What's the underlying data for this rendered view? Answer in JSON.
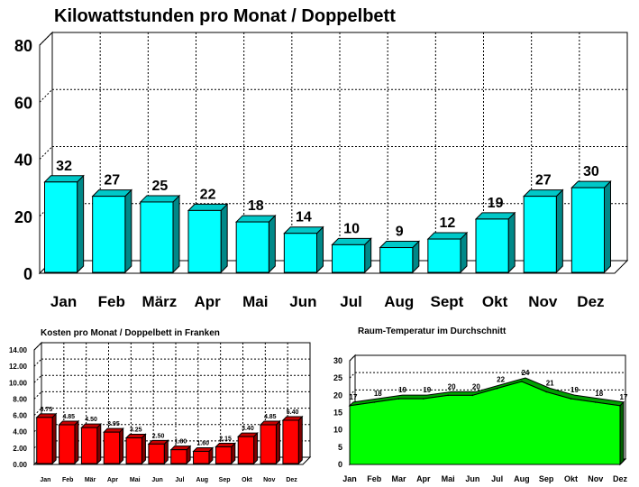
{
  "chart_data": [
    {
      "type": "bar",
      "title": "Kilowattstunden pro Monat / Doppelbett",
      "categories": [
        "Jan",
        "Feb",
        "März",
        "Apr",
        "Mai",
        "Jun",
        "Jul",
        "Aug",
        "Sept",
        "Okt",
        "Nov",
        "Dez"
      ],
      "values": [
        32,
        27,
        25,
        22,
        18,
        14,
        10,
        9,
        12,
        19,
        27,
        30
      ],
      "value_labels": [
        "32",
        "27",
        "25",
        "22",
        "18",
        "14",
        "10",
        "9",
        "12",
        "19",
        "27",
        "30"
      ],
      "yticks": [
        "0",
        "20",
        "40",
        "60",
        "80"
      ],
      "ylim": [
        0,
        80
      ],
      "grid": true,
      "colors": {
        "front": "#00ffff",
        "top": "#00c8c8",
        "side": "#008888"
      }
    },
    {
      "type": "bar",
      "title": "Kosten pro Monat / Doppelbett in Franken",
      "categories": [
        "Jan",
        "Feb",
        "Mär",
        "Apr",
        "Mai",
        "Jun",
        "Jul",
        "Aug",
        "Sep",
        "Okt",
        "Nov",
        "Dez"
      ],
      "values": [
        5.75,
        4.85,
        4.5,
        3.95,
        3.25,
        2.5,
        1.8,
        1.6,
        2.15,
        3.4,
        4.85,
        5.4
      ],
      "value_labels": [
        "5.75",
        "4.85",
        "4.50",
        "3.95",
        "3.25",
        "2.50",
        "1.80",
        "1.60",
        "2.15",
        "3.40",
        "4.85",
        "5.40"
      ],
      "yticks": [
        "0.00",
        "2.00",
        "4.00",
        "6.00",
        "8.00",
        "10.00",
        "12.00",
        "14.00"
      ],
      "ylim": [
        0,
        14
      ],
      "grid": true,
      "colors": {
        "front": "#ff0000",
        "top": "#c80000",
        "side": "#800000"
      }
    },
    {
      "type": "area",
      "title": "Raum-Temperatur im Durchschnitt",
      "categories": [
        "Jan",
        "Feb",
        "Mar",
        "Apr",
        "Mai",
        "Jun",
        "Jul",
        "Aug",
        "Sep",
        "Okt",
        "Nov",
        "Dez"
      ],
      "values": [
        17,
        18,
        19,
        19,
        20,
        20,
        22,
        24,
        21,
        19,
        18,
        17
      ],
      "value_labels": [
        "17",
        "18",
        "19",
        "19",
        "20",
        "20",
        "22",
        "24",
        "21",
        "19",
        "18",
        "17"
      ],
      "yticks": [
        "0",
        "5",
        "10",
        "15",
        "20",
        "25",
        "30"
      ],
      "ylim": [
        0,
        30
      ],
      "grid": true,
      "colors": {
        "front": "#00ff00",
        "top": "#00a000",
        "side": "#006000"
      }
    }
  ]
}
